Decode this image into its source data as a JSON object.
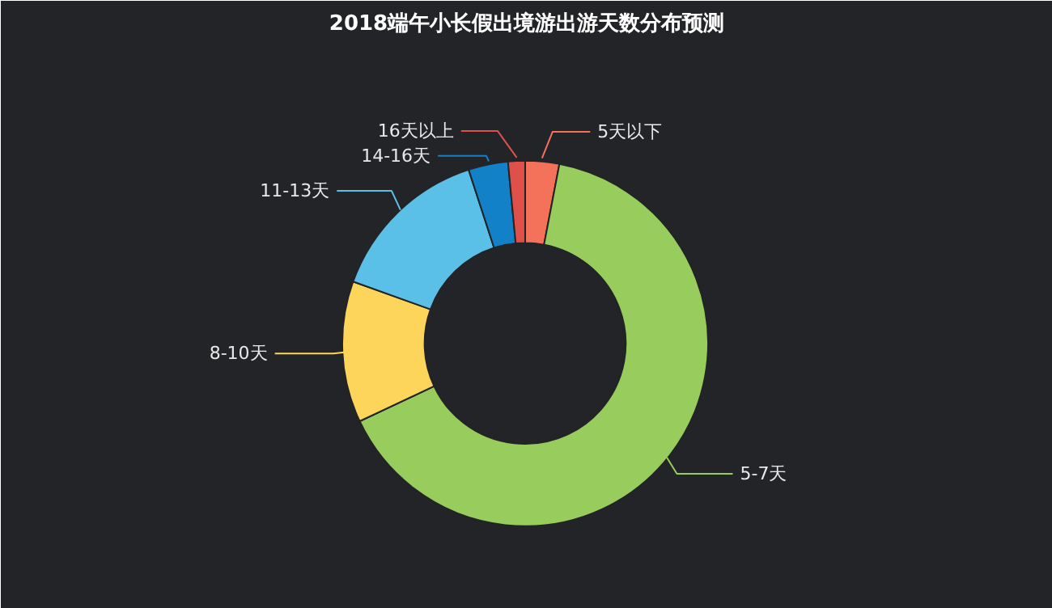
{
  "chart_data": {
    "type": "donut",
    "title": "2018端午小长假出境游出游天数分布预测",
    "categories": [
      "5天以下",
      "5-7天",
      "8-10天",
      "11-13天",
      "14-16天",
      "16天以上"
    ],
    "values": [
      3,
      65,
      12.5,
      14.5,
      3.5,
      1.5
    ],
    "colors": [
      "#f4715a",
      "#98cc5c",
      "#fcd55a",
      "#5bc0e8",
      "#1281c8",
      "#e0504a"
    ]
  }
}
